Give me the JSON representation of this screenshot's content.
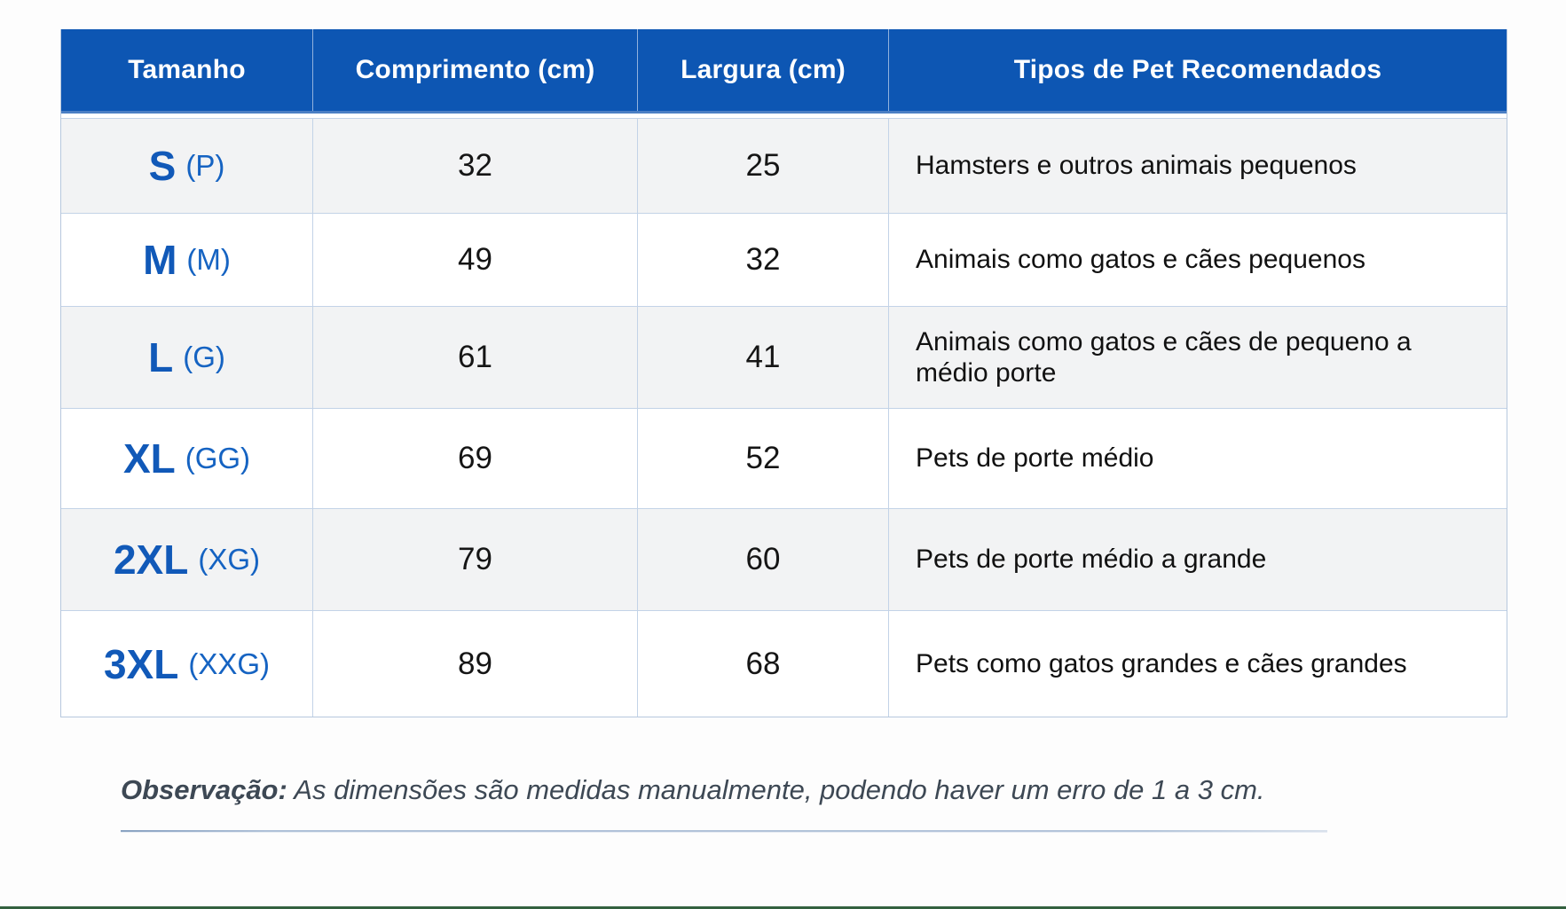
{
  "table": {
    "headers": {
      "size": "Tamanho",
      "length": "Comprimento (cm)",
      "width": "Largura (cm)",
      "pets": "Tipos de Pet Recomendados"
    },
    "rows": [
      {
        "size": "S",
        "size_alt": "(P)",
        "length": "32",
        "width": "25",
        "pets": "Hamsters e outros animais pequenos"
      },
      {
        "size": "M",
        "size_alt": "(M)",
        "length": "49",
        "width": "32",
        "pets": "Animais como gatos e cães pequenos"
      },
      {
        "size": "L",
        "size_alt": "(G)",
        "length": "61",
        "width": "41",
        "pets": "Animais como gatos e cães de pequeno a médio porte"
      },
      {
        "size": "XL",
        "size_alt": "(GG)",
        "length": "69",
        "width": "52",
        "pets": "Pets de porte médio"
      },
      {
        "size": "2XL",
        "size_alt": "(XG)",
        "length": "79",
        "width": "60",
        "pets": "Pets de porte médio a grande"
      },
      {
        "size": "3XL",
        "size_alt": "(XXG)",
        "length": "89",
        "width": "68",
        "pets": "Pets como gatos grandes e cães grandes"
      }
    ]
  },
  "note": {
    "label": "Observação:",
    "text": " As dimensões são medidas manualmente, podendo haver um erro de 1 a 3 cm."
  },
  "colors": {
    "header_bg": "#0d56b3",
    "size_text": "#1159b8",
    "row_alt_bg": "#f2f3f4",
    "cell_border": "#c3d3e7",
    "note_text": "#3d4854",
    "bottom_edge": "#33613f"
  }
}
